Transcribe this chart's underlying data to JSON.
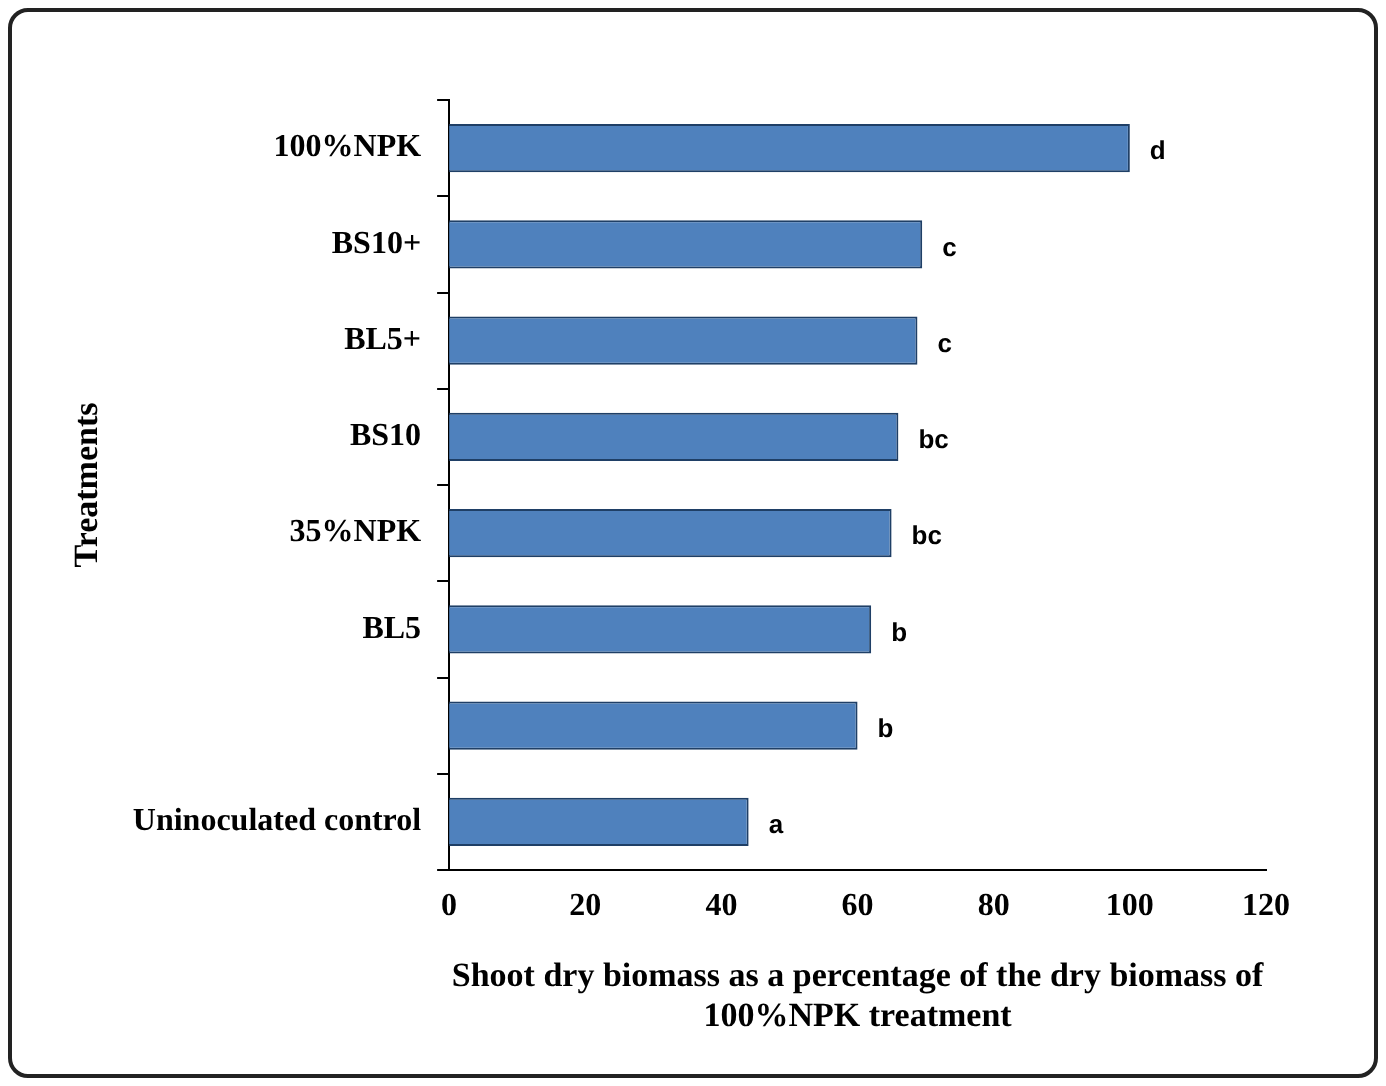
{
  "chart_data": {
    "type": "bar",
    "orientation": "horizontal",
    "xlabel": "Shoot dry biomass as a percentage of the dry biomass of\n100%NPK treatment",
    "ylabel": "Treatments",
    "categories": [
      "100%NPK",
      "BS10+",
      "BL5+",
      "BS10",
      "35%NPK",
      "BL5",
      null,
      "Uninoculated control"
    ],
    "values": [
      100,
      69.5,
      68.8,
      66,
      65,
      62,
      60,
      44
    ],
    "color": "#4f81bd",
    "xlim": [
      0,
      120
    ],
    "xticks": [
      0,
      20,
      40,
      60,
      80,
      100,
      120
    ],
    "grid": false,
    "legend": false,
    "annotations": [
      {
        "text": "d",
        "x": 100,
        "y": "100%NPK"
      },
      {
        "text": "c",
        "x": 69.5,
        "y": "BS10+"
      },
      {
        "text": "c",
        "x": 68.8,
        "y": "BL5+"
      },
      {
        "text": "bc",
        "x": 66,
        "y": "BS10"
      },
      {
        "text": "bc",
        "x": 65,
        "y": "35%NPK"
      },
      {
        "text": "b",
        "x": 62,
        "y": "BL5"
      },
      {
        "text": "b",
        "x": 60
      },
      {
        "text": "a",
        "x": 44,
        "y": "Uninoculated control"
      }
    ]
  }
}
